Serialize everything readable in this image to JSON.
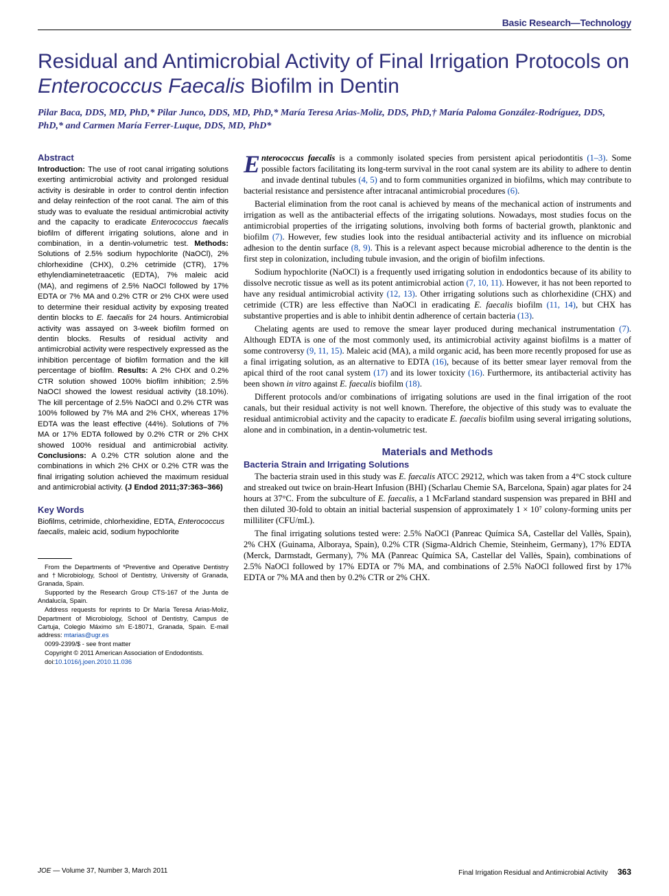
{
  "header": {
    "section_label": "Basic Research—Technology"
  },
  "title": {
    "pre": "Residual and Antimicrobial Activity of Final Irrigation Protocols on ",
    "italic": "Enterococcus Faecalis",
    "post": " Biofilm in Dentin"
  },
  "authors": "Pilar Baca, DDS, MD, PhD,* Pilar Junco, DDS, MD, PhD,* María Teresa Arias-Moliz, DDS, PhD,† María Paloma González-Rodríguez, DDS, PhD,* and Carmen María Ferrer-Luque, DDS, MD, PhD*",
  "abstract": {
    "heading": "Abstract",
    "intro_label": "Introduction: ",
    "intro": "The use of root canal irrigating solutions exerting antimicrobial activity and prolonged residual activity is desirable in order to control dentin infection and delay reinfection of the root canal. The aim of this study was to evaluate the residual antimicrobial activity and the capacity to eradicate ",
    "intro_italic": "Enterococcus faecalis",
    "intro2": " biofilm of different irrigating solutions, alone and in combination, in a dentin-volumetric test. ",
    "methods_label": "Methods: ",
    "methods": "Solutions of 2.5% sodium hypochlorite (NaOCl), 2% chlorhexidine (CHX), 0.2% cetrimide (CTR), 17% ethylendiaminetetraacetic (EDTA), 7% maleic acid (MA), and regimens of 2.5% NaOCl followed by 17% EDTA or 7% MA and 0.2% CTR or 2% CHX were used to determine their residual activity by exposing treated dentin blocks to ",
    "methods_italic": "E. faecalis",
    "methods2": " for 24 hours. Antimicrobial activity was assayed on 3-week biofilm formed on dentin blocks. Results of residual activity and antimicrobial activity were respectively expressed as the inhibition percentage of biofilm formation and the kill percentage of biofilm. ",
    "results_label": "Results: ",
    "results": "A 2% CHX and 0.2% CTR solution showed 100% biofilm inhibition; 2.5% NaOCl showed the lowest residual activity (18.10%). The kill percentage of 2.5% NaOCl and 0.2% CTR was 100% followed by 7% MA and 2% CHX, whereas 17% EDTA was the least effective (44%). Solutions of 7% MA or 17% EDTA followed by 0.2% CTR or 2% CHX showed 100% residual and antimicrobial activity. ",
    "conclusions_label": "Conclusions: ",
    "conclusions": "A 0.2% CTR solution alone and the combinations in which 2% CHX or 0.2% CTR was the final irrigating solution achieved the maximum residual and antimicrobial activity. ",
    "citation": "(J Endod 2011;37:363–366)"
  },
  "keywords": {
    "heading": "Key Words",
    "pre": "Biofilms, cetrimide, chlorhexidine, EDTA, ",
    "italic": "Enterococcus faecalis",
    "post": ", maleic acid, sodium hypochlorite"
  },
  "affiliations": {
    "p1": "From the Departments of *Preventive and Operative Dentistry and †Microbiology, School of Dentistry, University of Granada, Granada, Spain.",
    "p2": "Supported by the Research Group CTS-167 of the Junta de Andalucía, Spain.",
    "p3_pre": "Address requests for reprints to Dr María Teresa Arias-Moliz, Department of Microbiology, School of Dentistry, Campus de Cartuja, Colegio Máximo s/n E-18071, Granada, Spain. E-mail address: ",
    "p3_link": "mtarias@ugr.es",
    "p4": "0099-2399/$ - see front matter",
    "p5": "Copyright © 2011 American Association of Endodontists.",
    "p6_pre": "doi:",
    "p6_link": "10.1016/j.joen.2010.11.036"
  },
  "body": {
    "p1_dropcap": "E",
    "p1_italic1": "nterococcus faecalis",
    "p1_a": " is a commonly isolated species from persistent apical periodontitis ",
    "p1_ref1": "(1–3)",
    "p1_b": ". Some possible factors facilitating its long-term survival in the root canal system are its ability to adhere to dentin and invade dentinal tubules ",
    "p1_ref2": "(4, 5)",
    "p1_c": " and to form communities organized in biofilms, which may contribute to bacterial resistance and persistence after intracanal antimicrobial procedures ",
    "p1_ref3": "(6)",
    "p1_d": ".",
    "p2_a": "Bacterial elimination from the root canal is achieved by means of the mechanical action of instruments and irrigation as well as the antibacterial effects of the irrigating solutions. Nowadays, most studies focus on the antimicrobial properties of the irrigating solutions, involving both forms of bacterial growth, planktonic and biofilm ",
    "p2_ref1": "(7)",
    "p2_b": ". However, few studies look into the residual antibacterial activity and its influence on microbial adhesion to the dentin surface ",
    "p2_ref2": "(8, 9)",
    "p2_c": ". This is a relevant aspect because microbial adherence to the dentin is the first step in colonization, including tubule invasion, and the origin of biofilm infections.",
    "p3_a": "Sodium hypochlorite (NaOCl) is a frequently used irrigating solution in endodontics because of its ability to dissolve necrotic tissue as well as its potent antimicrobial action ",
    "p3_ref1": "(7, 10, 11)",
    "p3_b": ". However, it has not been reported to have any residual antimicrobial activity ",
    "p3_ref2": "(12, 13)",
    "p3_c": ". Other irrigating solutions such as chlorhexidine (CHX) and cetrimide (CTR) are less effective than NaOCl in eradicating ",
    "p3_italic1": "E. faecalis",
    "p3_d": " biofilm ",
    "p3_ref3": "(11, 14)",
    "p3_e": ", but CHX has substantive properties and is able to inhibit dentin adherence of certain bacteria ",
    "p3_ref4": "(13)",
    "p3_f": ".",
    "p4_a": "Chelating agents are used to remove the smear layer produced during mechanical instrumentation ",
    "p4_ref1": "(7)",
    "p4_b": ". Although EDTA is one of the most commonly used, its antimicrobial activity against biofilms is a matter of some controversy ",
    "p4_ref2": "(9, 11, 15)",
    "p4_c": ". Maleic acid (MA), a mild organic acid, has been more recently proposed for use as a final irrigating solution, as an alternative to EDTA ",
    "p4_ref3": "(16)",
    "p4_d": ", because of its better smear layer removal from the apical third of the root canal system ",
    "p4_ref4": "(17)",
    "p4_e": " and its lower toxicity ",
    "p4_ref5": "(16)",
    "p4_f": ". Furthermore, its antibacterial activity has been shown ",
    "p4_italic1": "in vitro",
    "p4_g": " against ",
    "p4_italic2": "E. faecalis",
    "p4_h": " biofilm ",
    "p4_ref6": "(18)",
    "p4_i": ".",
    "p5_a": "Different protocols and/or combinations of irrigating solutions are used in the final irrigation of the root canals, but their residual activity is not well known. Therefore, the objective of this study was to evaluate the residual antimicrobial activity and the capacity to eradicate ",
    "p5_italic1": "E. faecalis",
    "p5_b": " biofilm using several irrigating solutions, alone and in combination, in a dentin-volumetric test.",
    "mm_heading": "Materials and Methods",
    "sub1_heading": "Bacteria Strain and Irrigating Solutions",
    "p6_a": "The bacteria strain used in this study was ",
    "p6_italic1": "E. faecalis",
    "p6_b": " ATCC 29212, which was taken from a 4°C stock culture and streaked out twice on brain-Heart Infusion (BHI) (Scharlau Chemie SA, Barcelona, Spain) agar plates for 24 hours at 37°C. From the subculture of ",
    "p6_italic2": "E. faecalis",
    "p6_c": ", a 1 McFarland standard suspension was prepared in BHI and then diluted 30-fold to obtain an initial bacterial suspension of approximately 1 × 10⁷ colony-forming units per milliliter (CFU/mL).",
    "p7": "The final irrigating solutions tested were: 2.5% NaOCl (Panreac Química SA, Castellar del Vallès, Spain), 2% CHX (Guinama, Alboraya, Spain), 0.2% CTR (Sigma-Aldrich Chemie, Steinheim, Germany), 17% EDTA (Merck, Darmstadt, Germany), 7% MA (Panreac Química SA, Castellar del Vallès, Spain), combinations of 2.5% NaOCl followed by 17% EDTA or 7% MA, and combinations of 2.5% NaOCl followed first by 17% EDTA or 7% MA and then by 0.2% CTR or 2% CHX."
  },
  "footer": {
    "left_ital": "JOE",
    "left_rest": " — Volume 37, Number 3, March 2011",
    "right_text": "Final Irrigation Residual and Antimicrobial Activity",
    "page": "363"
  }
}
